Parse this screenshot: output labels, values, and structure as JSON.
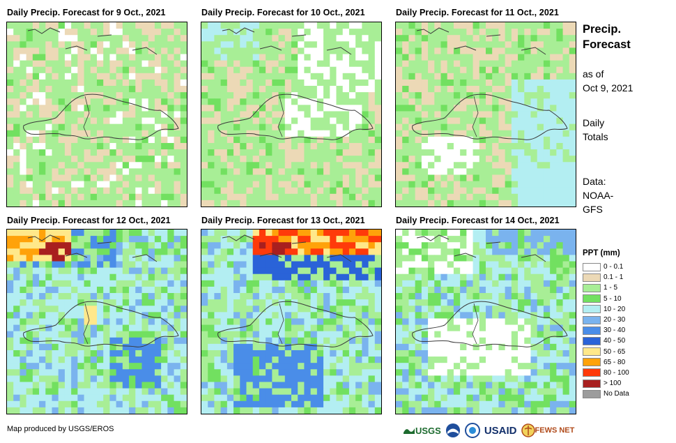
{
  "panels": [
    {
      "id": "p1",
      "title": "Daily Precip. Forecast for 9 Oct., 2021",
      "pattern": "dry_mixed"
    },
    {
      "id": "p2",
      "title": "Daily Precip. Forecast for 10 Oct., 2021",
      "pattern": "dry_white"
    },
    {
      "id": "p3",
      "title": "Daily Precip. Forecast for 11 Oct., 2021",
      "pattern": "light_east"
    },
    {
      "id": "p4",
      "title": "Daily Precip. Forecast for 12 Oct., 2021",
      "pattern": "wet_nw"
    },
    {
      "id": "p5",
      "title": "Daily Precip. Forecast for 13 Oct., 2021",
      "pattern": "wet_north"
    },
    {
      "id": "p6",
      "title": "Daily Precip. Forecast for 14 Oct., 2021",
      "pattern": "wet_ring"
    }
  ],
  "sidebar": {
    "title_line1": "Precip.",
    "title_line2": "Forecast",
    "asof_line1": "as of",
    "asof_line2": "Oct 9, 2021",
    "daily_line1": "Daily",
    "daily_line2": "Totals",
    "data_line1": "Data:",
    "data_line2": "NOAA-",
    "data_line3": "GFS"
  },
  "legend": {
    "title": "PPT (mm)",
    "items": [
      {
        "label": "0 - 0.1",
        "color": "#ffffff"
      },
      {
        "label": "0.1 - 1",
        "color": "#ecd9b6"
      },
      {
        "label": "1 - 5",
        "color": "#a8ee96"
      },
      {
        "label": "5 - 10",
        "color": "#72e060"
      },
      {
        "label": "10 - 20",
        "color": "#b3eef2"
      },
      {
        "label": "20 - 30",
        "color": "#7ab3ee"
      },
      {
        "label": "30 - 40",
        "color": "#4a8de8"
      },
      {
        "label": "40 - 50",
        "color": "#2a63d8"
      },
      {
        "label": "50 - 65",
        "color": "#ffe88a"
      },
      {
        "label": "65 - 80",
        "color": "#ffa20a"
      },
      {
        "label": "80 - 100",
        "color": "#ff3a0a"
      },
      {
        "label": "> 100",
        "color": "#a81f1f"
      },
      {
        "label": "No Data",
        "color": "#9c9c9c"
      }
    ]
  },
  "footer": {
    "credit": "Map produced by USGS/EROS",
    "logos": [
      {
        "name": "usgs-logo",
        "text": "USGS"
      },
      {
        "name": "noaa-logo",
        "text": ""
      },
      {
        "name": "ee-logo",
        "text": ""
      },
      {
        "name": "usaid-logo",
        "text": "USAID"
      },
      {
        "name": "fewsnet-logo",
        "text": "FEWS NET"
      }
    ]
  }
}
